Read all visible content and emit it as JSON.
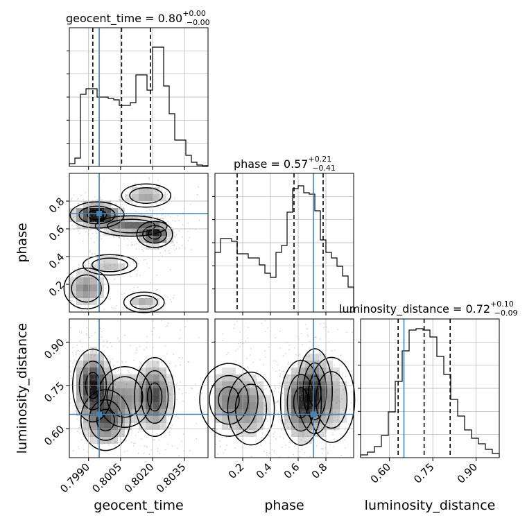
{
  "chart_data": {
    "type": "corner",
    "colors": {
      "truth": "#4682b4",
      "hist": "#000000",
      "grid": "#b0b0b0",
      "density": "#000000"
    },
    "parameters": [
      {
        "name": "geocent_time",
        "title_prefix": "geocent_time = 0.80",
        "title_plus": "+0.00",
        "title_minus": "−0.00",
        "range": [
          0.7981,
          0.8046
        ],
        "ticks": [
          0.799,
          0.8005,
          0.802,
          0.8035
        ],
        "tick_labels": [
          "0.7990",
          "0.8005",
          "0.8020",
          "0.8035"
        ],
        "truth": 0.7995,
        "quantiles": [
          0.7992,
          0.80055,
          0.8019
        ],
        "hist": [
          0.02,
          0.06,
          0.52,
          0.56,
          0.56,
          0.5,
          0.5,
          0.49,
          0.48,
          0.44,
          0.44,
          0.46,
          0.66,
          0.66,
          0.55,
          0.86,
          0.86,
          0.58,
          0.38,
          0.19,
          0.19,
          0.08,
          0.03,
          0.01,
          0.005
        ]
      },
      {
        "name": "phase",
        "title_prefix": "phase = 0.57",
        "title_plus": "+0.21",
        "title_minus": "−0.41",
        "range": [
          0.0,
          1.0
        ],
        "ticks": [
          0.2,
          0.4,
          0.6,
          0.8
        ],
        "tick_labels": [
          "0.2",
          "0.4",
          "0.6",
          "0.8"
        ],
        "truth": 0.71,
        "quantiles": [
          0.16,
          0.57,
          0.78
        ],
        "hist": [
          0.43,
          0.53,
          0.53,
          0.51,
          0.42,
          0.42,
          0.39,
          0.39,
          0.34,
          0.28,
          0.25,
          0.43,
          0.48,
          0.72,
          0.89,
          0.91,
          0.86,
          0.85,
          0.73,
          0.52,
          0.43,
          0.39,
          0.33,
          0.26,
          0.18
        ]
      },
      {
        "name": "luminosity_distance",
        "title_prefix": "luminosity_distance = 0.72",
        "title_plus": "+0.10",
        "title_minus": "−0.09",
        "range": [
          0.5,
          0.98
        ],
        "ticks": [
          0.6,
          0.75,
          0.9
        ],
        "tick_labels": [
          "0.60",
          "0.75",
          "0.90"
        ],
        "truth": 0.65,
        "quantiles": [
          0.63,
          0.72,
          0.81
        ],
        "hist": [
          0.02,
          0.04,
          0.08,
          0.16,
          0.33,
          0.55,
          0.77,
          0.92,
          0.93,
          0.92,
          0.87,
          0.73,
          0.6,
          0.42,
          0.3,
          0.2,
          0.14,
          0.1,
          0.06,
          0.03
        ]
      }
    ],
    "y_ticks": {
      "phase": {
        "ticks": [
          0.2,
          0.4,
          0.6,
          0.8
        ],
        "tick_labels": [
          "0.2",
          "0.4",
          "0.6",
          "0.8"
        ]
      },
      "luminosity_distance": {
        "ticks": [
          0.6,
          0.75,
          0.9
        ],
        "tick_labels": [
          "0.60",
          "0.75",
          "0.90"
        ]
      }
    },
    "blobs": {
      "phase_vs_time": [
        {
          "x": 0.7994,
          "y": 0.7,
          "sx": 0.0006,
          "sy": 0.045,
          "w": 1.0
        },
        {
          "x": 0.801,
          "y": 0.62,
          "sx": 0.0008,
          "sy": 0.035,
          "w": 0.55
        },
        {
          "x": 0.8021,
          "y": 0.56,
          "sx": 0.0004,
          "sy": 0.045,
          "w": 0.8
        },
        {
          "x": 0.8017,
          "y": 0.84,
          "sx": 0.00055,
          "sy": 0.04,
          "w": 0.35
        },
        {
          "x": 0.7989,
          "y": 0.17,
          "sx": 0.0005,
          "sy": 0.07,
          "w": 0.45
        },
        {
          "x": 0.8,
          "y": 0.34,
          "sx": 0.0006,
          "sy": 0.035,
          "w": 0.25
        },
        {
          "x": 0.8016,
          "y": 0.07,
          "sx": 0.00045,
          "sy": 0.035,
          "w": 0.3
        }
      ],
      "dist_vs_time": [
        {
          "x": 0.7992,
          "y": 0.75,
          "sx": 0.00045,
          "sy": 0.06,
          "w": 1.0
        },
        {
          "x": 0.7998,
          "y": 0.63,
          "sx": 0.00055,
          "sy": 0.05,
          "w": 0.7
        },
        {
          "x": 0.8021,
          "y": 0.71,
          "sx": 0.00045,
          "sy": 0.065,
          "w": 0.8
        },
        {
          "x": 0.8007,
          "y": 0.71,
          "sx": 0.0006,
          "sy": 0.05,
          "w": 0.45
        }
      ],
      "dist_vs_phase": [
        {
          "x": 0.1,
          "y": 0.7,
          "sx": 0.1,
          "sy": 0.06,
          "w": 0.65
        },
        {
          "x": 0.26,
          "y": 0.67,
          "sx": 0.08,
          "sy": 0.06,
          "w": 0.5
        },
        {
          "x": 0.62,
          "y": 0.69,
          "sx": 0.07,
          "sy": 0.07,
          "w": 1.0
        },
        {
          "x": 0.72,
          "y": 0.73,
          "sx": 0.06,
          "sy": 0.07,
          "w": 0.75
        },
        {
          "x": 0.84,
          "y": 0.7,
          "sx": 0.08,
          "sy": 0.07,
          "w": 0.45
        }
      ]
    }
  }
}
